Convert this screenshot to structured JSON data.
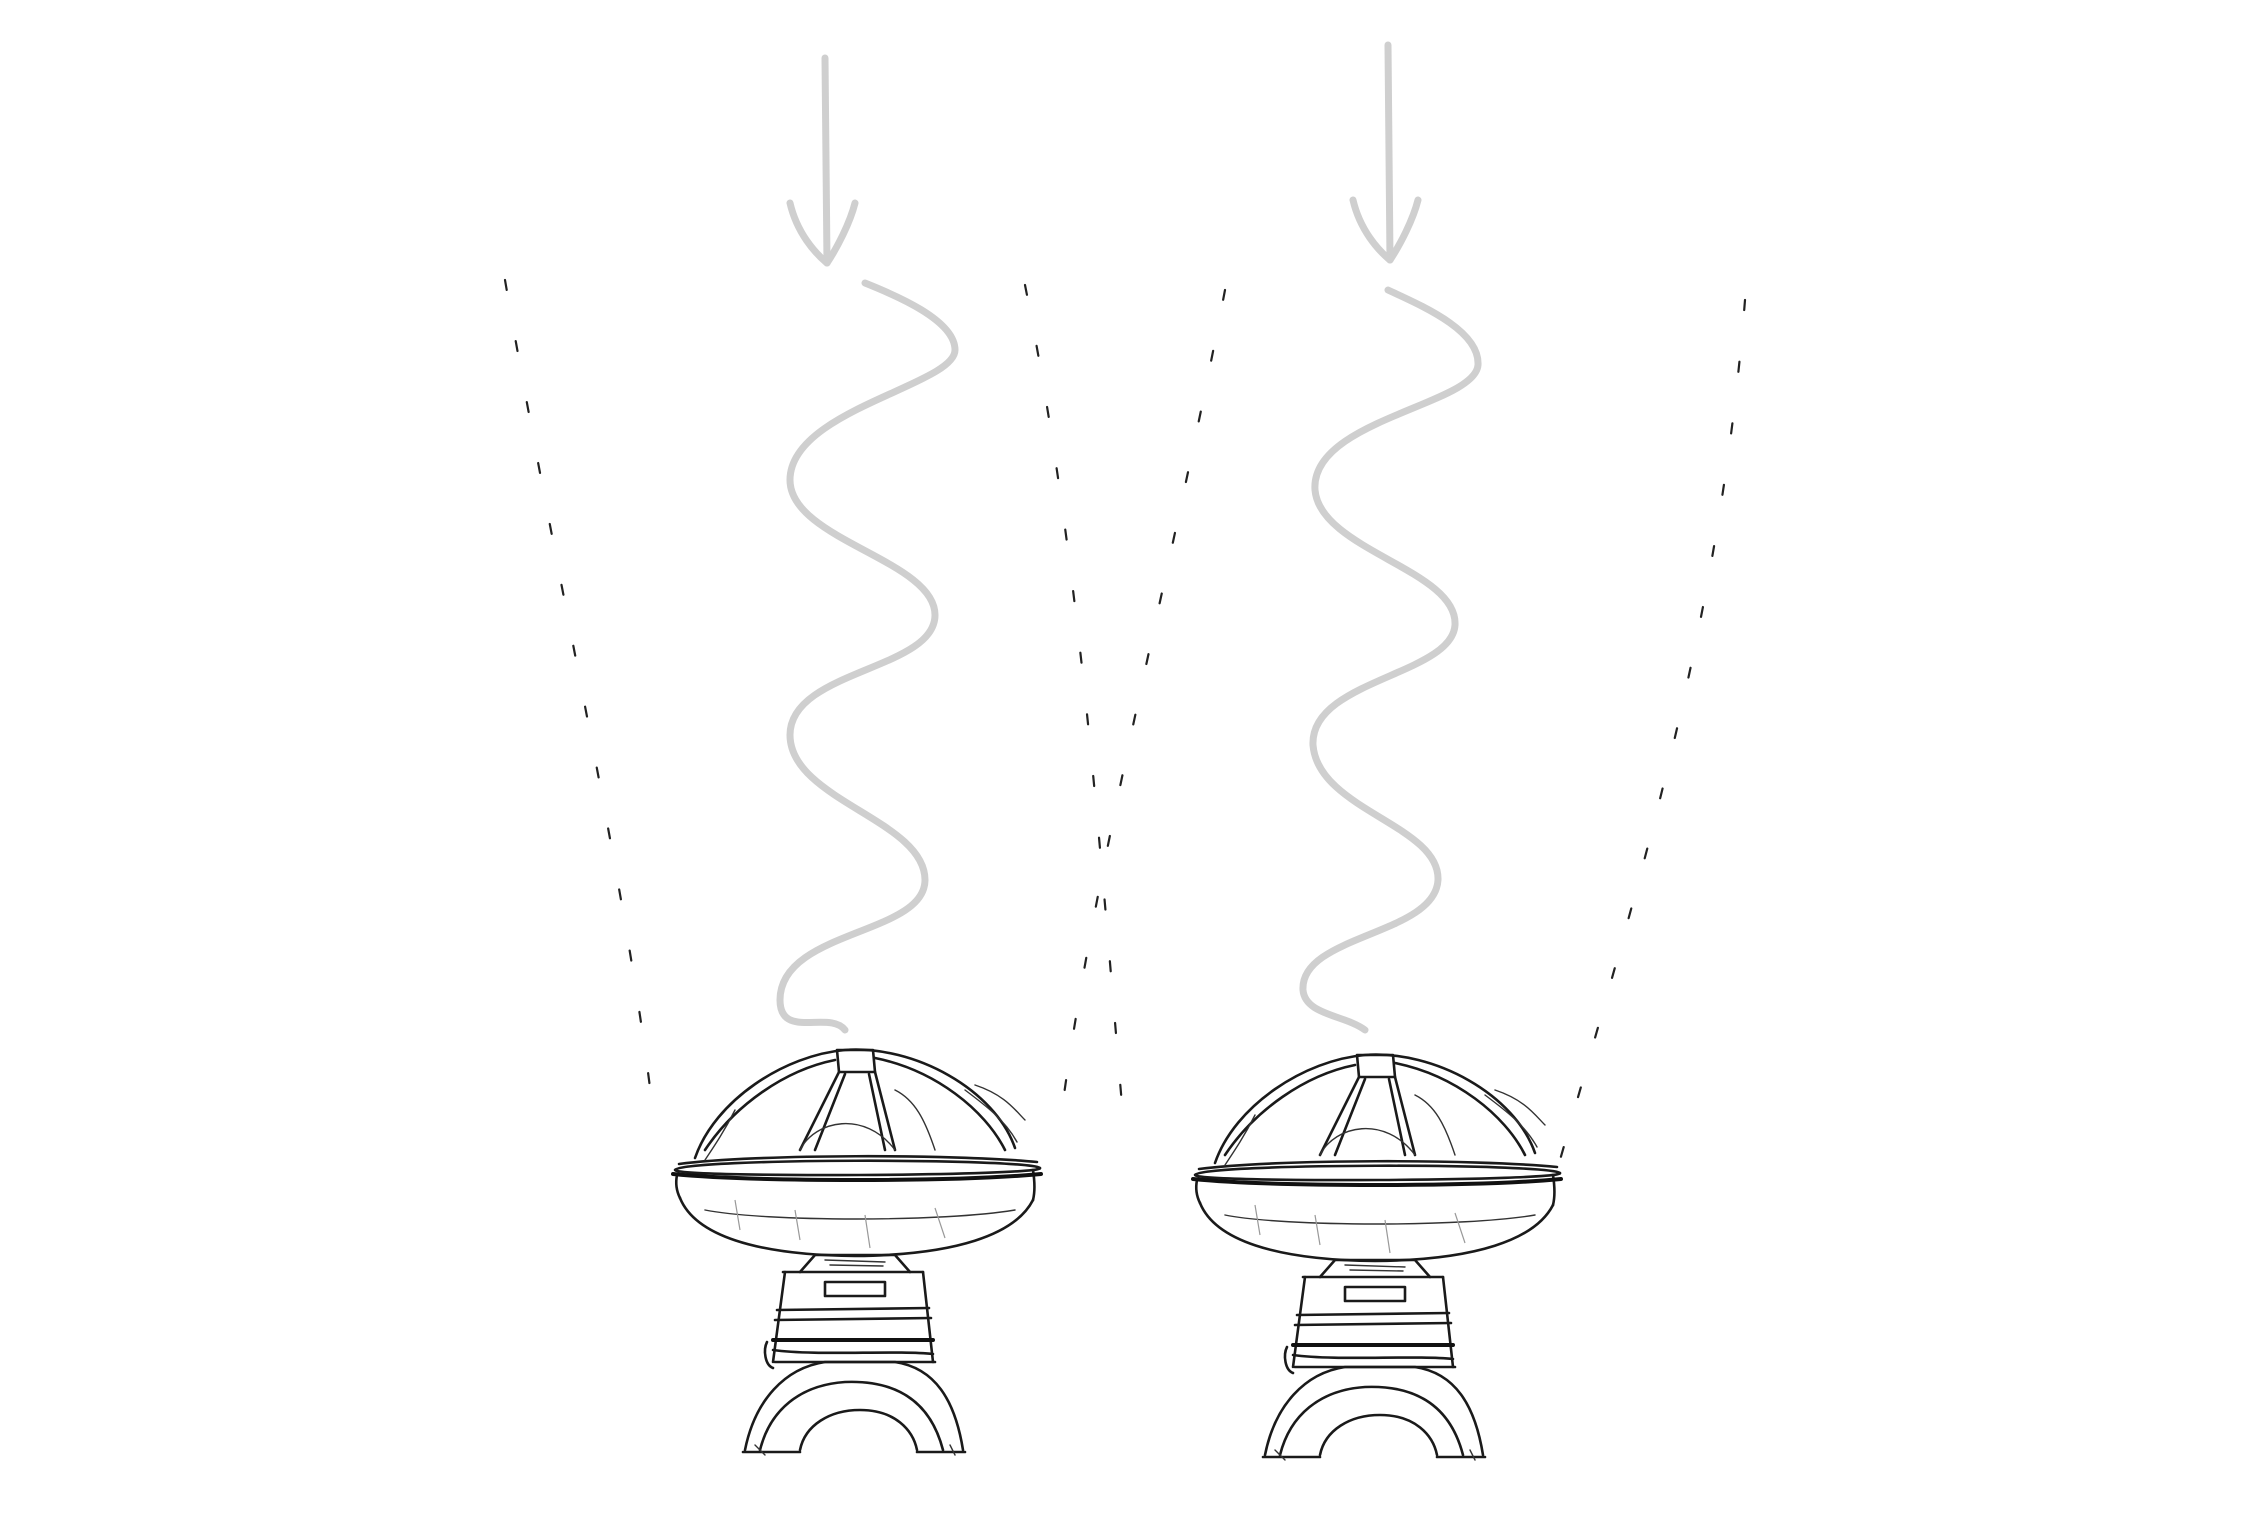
{
  "colors": {
    "background": "#ffffff",
    "ink": "#1a1a1a",
    "signal": "#cfcfcf"
  },
  "icons": [
    "arrow-down-icon",
    "radio-wave-icon",
    "radio-dish-icon",
    "beam-boundary-icon"
  ],
  "telescopes": [
    {
      "name": "radio-telescope-left"
    },
    {
      "name": "radio-telescope-right"
    }
  ]
}
